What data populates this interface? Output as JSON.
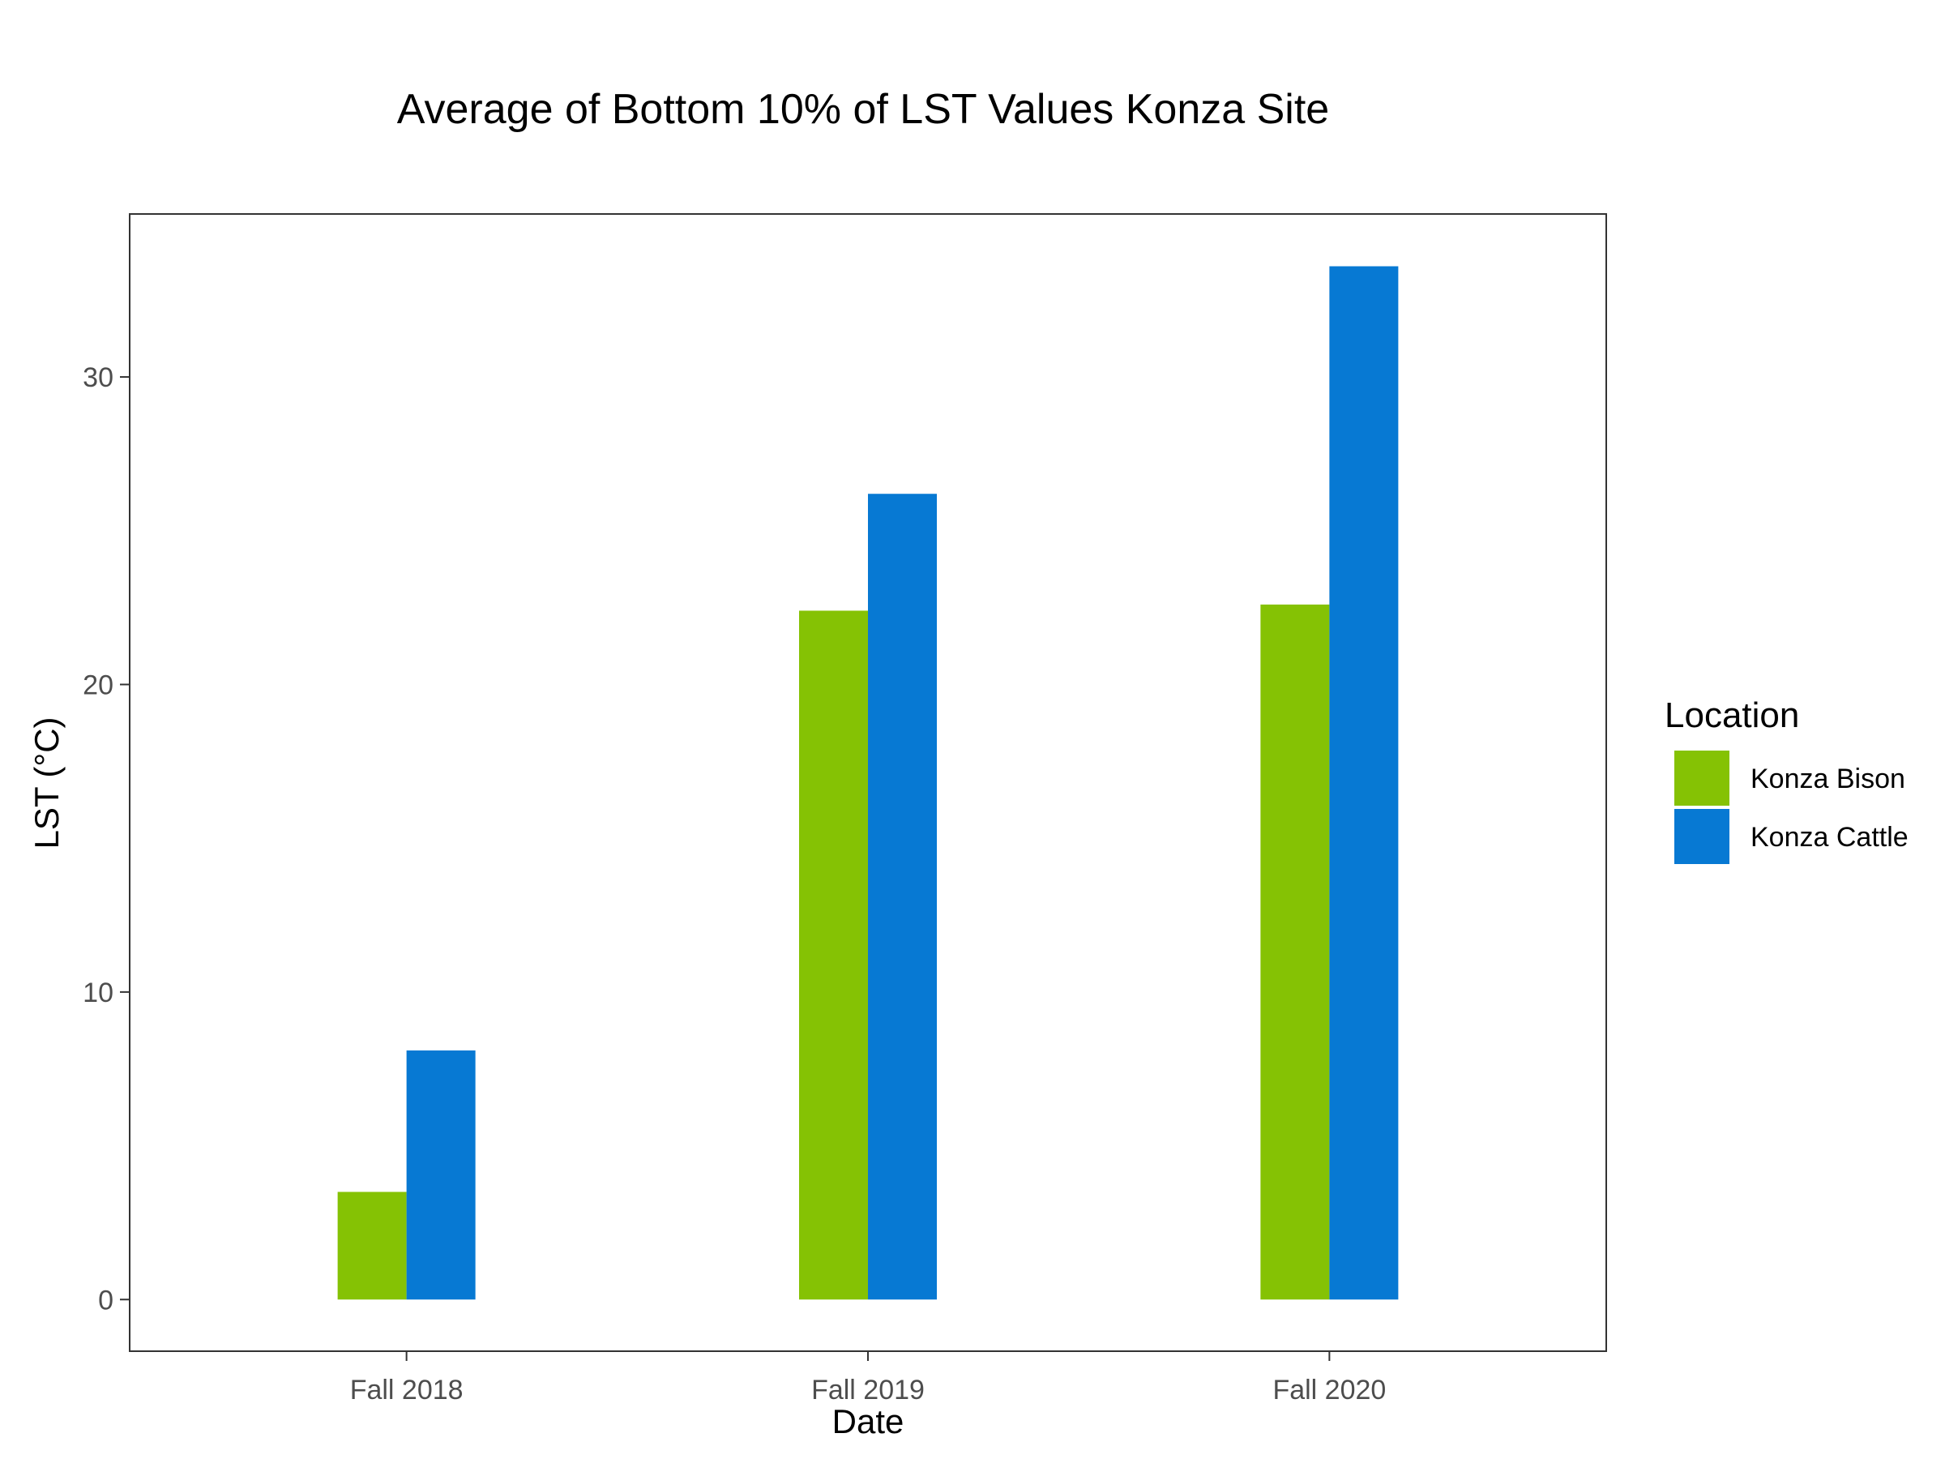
{
  "chart_data": {
    "type": "bar",
    "title": "Average of Bottom 10% of LST Values Konza Site",
    "xlabel": "Date",
    "ylabel": "LST (°C)",
    "categories": [
      "Fall 2018",
      "Fall 2019",
      "Fall 2020"
    ],
    "series": [
      {
        "name": "Konza Bison",
        "color": "#85c204",
        "values": [
          3.5,
          22.4,
          22.6
        ]
      },
      {
        "name": "Konza Cattle",
        "color": "#0779d3",
        "values": [
          8.1,
          26.2,
          33.6
        ]
      }
    ],
    "ylim": [
      -1.68,
      35.3
    ],
    "yticks": [
      0,
      10,
      20,
      30
    ],
    "grid": false,
    "legend": {
      "title": "Location",
      "position": "right"
    }
  }
}
